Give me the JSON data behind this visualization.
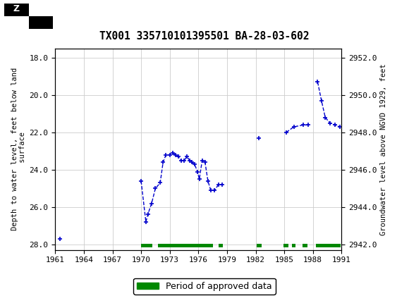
{
  "title": "TX001 335710101395501 BA-28-03-602",
  "ylabel_left": "Depth to water level, feet below land\n surface",
  "ylabel_right": "Groundwater level above NGVD 1929, feet",
  "xlim": [
    1961,
    1991
  ],
  "ylim_left": [
    28.3,
    17.5
  ],
  "ylim_right": [
    2941.7,
    2952.5
  ],
  "xticks": [
    1961,
    1964,
    1967,
    1970,
    1973,
    1976,
    1979,
    1982,
    1985,
    1988,
    1991
  ],
  "yticks_left": [
    18.0,
    20.0,
    22.0,
    24.0,
    26.0,
    28.0
  ],
  "yticks_right": [
    2942.0,
    2944.0,
    2946.0,
    2948.0,
    2950.0,
    2952.0
  ],
  "segments": [
    {
      "x": [
        1961.5
      ],
      "y": [
        27.7
      ]
    },
    {
      "x": [
        1970.0,
        1970.5,
        1970.7,
        1971.1,
        1971.5,
        1972.0,
        1972.3,
        1972.6,
        1973.0,
        1973.3,
        1973.6,
        1973.9,
        1974.2,
        1974.5,
        1974.8,
        1975.1,
        1975.3,
        1975.6,
        1975.9,
        1976.1,
        1976.4,
        1976.7,
        1977.0,
        1977.3,
        1977.7,
        1978.1,
        1978.5
      ],
      "y": [
        24.6,
        26.8,
        26.4,
        25.8,
        25.0,
        24.7,
        23.6,
        23.2,
        23.2,
        23.1,
        23.2,
        23.3,
        23.5,
        23.5,
        23.3,
        23.5,
        23.6,
        23.7,
        24.1,
        24.5,
        23.5,
        23.6,
        24.6,
        25.1,
        25.1,
        24.8,
        24.8
      ]
    },
    {
      "x": [
        1982.3
      ],
      "y": [
        22.3
      ]
    },
    {
      "x": [
        1985.2,
        1986.0,
        1987.0,
        1987.5
      ],
      "y": [
        22.0,
        21.7,
        21.6,
        21.6
      ]
    },
    {
      "x": [
        1988.5,
        1988.9,
        1989.3,
        1989.8,
        1990.3,
        1990.8
      ],
      "y": [
        19.3,
        20.3,
        21.2,
        21.5,
        21.6,
        21.7
      ]
    }
  ],
  "line_color": "#0000cc",
  "marker": "+",
  "marker_size": 5,
  "grid_color": "#cccccc",
  "background_color": "#ffffff",
  "header_color": "#006644",
  "approved_periods_x": [
    [
      1970.0,
      1971.2
    ],
    [
      1971.8,
      1977.5
    ],
    [
      1978.1,
      1978.6
    ],
    [
      1982.1,
      1982.6
    ],
    [
      1984.9,
      1985.4
    ],
    [
      1985.8,
      1986.2
    ],
    [
      1986.9,
      1987.4
    ],
    [
      1988.3,
      1990.9
    ]
  ],
  "approved_color": "#008800",
  "legend_label": "Period of approved data"
}
